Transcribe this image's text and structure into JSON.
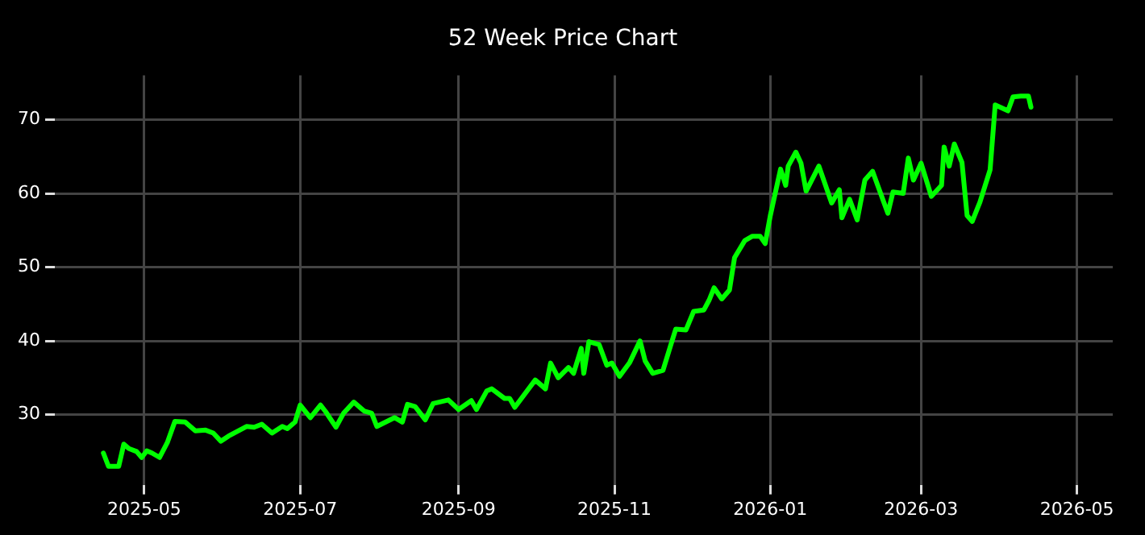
{
  "chart_data": {
    "type": "line",
    "title": "52 Week Price Chart",
    "x": [
      "2025-04-15",
      "2025-04-17",
      "2025-04-21",
      "2025-04-23",
      "2025-04-25",
      "2025-04-28",
      "2025-04-30",
      "2025-05-02",
      "2025-05-04",
      "2025-05-07",
      "2025-05-10",
      "2025-05-13",
      "2025-05-17",
      "2025-05-21",
      "2025-05-25",
      "2025-05-28",
      "2025-05-31",
      "2025-06-03",
      "2025-06-10",
      "2025-06-13",
      "2025-06-16",
      "2025-06-20",
      "2025-06-24",
      "2025-06-26",
      "2025-06-29",
      "2025-07-01",
      "2025-07-05",
      "2025-07-09",
      "2025-07-11",
      "2025-07-15",
      "2025-07-18",
      "2025-07-22",
      "2025-07-26",
      "2025-07-29",
      "2025-07-31",
      "2025-08-07",
      "2025-08-10",
      "2025-08-12",
      "2025-08-15",
      "2025-08-19",
      "2025-08-22",
      "2025-08-28",
      "2025-09-01",
      "2025-09-06",
      "2025-09-08",
      "2025-09-12",
      "2025-09-14",
      "2025-09-19",
      "2025-09-21",
      "2025-09-23",
      "2025-10-01",
      "2025-10-05",
      "2025-10-07",
      "2025-10-10",
      "2025-10-14",
      "2025-10-16",
      "2025-10-19",
      "2025-10-20",
      "2025-10-22",
      "2025-10-26",
      "2025-10-29",
      "2025-10-31",
      "2025-11-03",
      "2025-11-07",
      "2025-11-11",
      "2025-11-13",
      "2025-11-16",
      "2025-11-20",
      "2025-11-23",
      "2025-11-25",
      "2025-11-29",
      "2025-12-02",
      "2025-12-06",
      "2025-12-08",
      "2025-12-10",
      "2025-12-13",
      "2025-12-16",
      "2025-12-18",
      "2025-12-22",
      "2025-12-25",
      "2025-12-28",
      "2025-12-30",
      "2026-01-01",
      "2026-01-05",
      "2026-01-07",
      "2026-01-08",
      "2026-01-11",
      "2026-01-13",
      "2026-01-15",
      "2026-01-20",
      "2026-01-25",
      "2026-01-28",
      "2026-01-29",
      "2026-02-01",
      "2026-02-04",
      "2026-02-07",
      "2026-02-10",
      "2026-02-16",
      "2026-02-18",
      "2026-02-22",
      "2026-02-24",
      "2026-02-26",
      "2026-03-01",
      "2026-03-05",
      "2026-03-09",
      "2026-03-10",
      "2026-03-12",
      "2026-03-14",
      "2026-03-17",
      "2026-03-19",
      "2026-03-21",
      "2026-03-24",
      "2026-03-28",
      "2026-03-30",
      "2026-04-04",
      "2026-04-06",
      "2026-04-09",
      "2026-04-12",
      "2026-04-13"
    ],
    "series": [
      {
        "color": "#00ff00",
        "values": [
          24.8,
          23.0,
          23.0,
          26.0,
          25.4,
          25.0,
          24.2,
          25.1,
          24.8,
          24.2,
          26.2,
          29.1,
          29.0,
          27.8,
          27.9,
          27.5,
          26.4,
          27.1,
          28.4,
          28.3,
          28.7,
          27.5,
          28.4,
          28.1,
          29.0,
          31.3,
          29.6,
          31.3,
          30.4,
          28.3,
          30.2,
          31.7,
          30.5,
          30.2,
          28.4,
          29.6,
          29.0,
          31.4,
          31.1,
          29.3,
          31.5,
          32.0,
          30.7,
          31.9,
          30.7,
          33.2,
          33.5,
          32.2,
          32.2,
          31.0,
          34.7,
          33.5,
          37.0,
          35.0,
          36.4,
          35.6,
          39.0,
          35.6,
          39.9,
          39.5,
          36.7,
          37.0,
          35.2,
          37.1,
          40.0,
          37.3,
          35.6,
          36.0,
          39.4,
          41.6,
          41.5,
          44.0,
          44.2,
          45.5,
          47.2,
          45.7,
          46.9,
          51.3,
          53.6,
          54.2,
          54.2,
          53.2,
          57.0,
          63.3,
          61.1,
          63.7,
          65.6,
          64.1,
          60.3,
          63.7,
          58.7,
          60.5,
          56.7,
          59.2,
          56.4,
          61.8,
          63.0,
          57.3,
          60.2,
          60.0,
          64.8,
          61.8,
          64.1,
          59.6,
          61.1,
          66.3,
          63.7,
          66.7,
          64.2,
          57.0,
          56.2,
          58.8,
          63.2,
          72.0,
          71.2,
          73.1,
          73.2,
          73.2,
          71.7
        ]
      }
    ],
    "xlim": [
      "2025-03-27",
      "2026-05-15"
    ],
    "xticks": [
      {
        "value": "2025-05-01",
        "label": "2025-05"
      },
      {
        "value": "2025-07-01",
        "label": "2025-07"
      },
      {
        "value": "2025-09-01",
        "label": "2025-09"
      },
      {
        "value": "2025-11-01",
        "label": "2025-11"
      },
      {
        "value": "2026-01-01",
        "label": "2026-01"
      },
      {
        "value": "2026-03-01",
        "label": "2026-03"
      },
      {
        "value": "2026-05-01",
        "label": "2026-05"
      }
    ],
    "ylim": [
      20.5,
      76
    ],
    "yticks": [
      30,
      40,
      50,
      60,
      70
    ],
    "grid": true,
    "marker": "none",
    "line_style": "solid"
  }
}
